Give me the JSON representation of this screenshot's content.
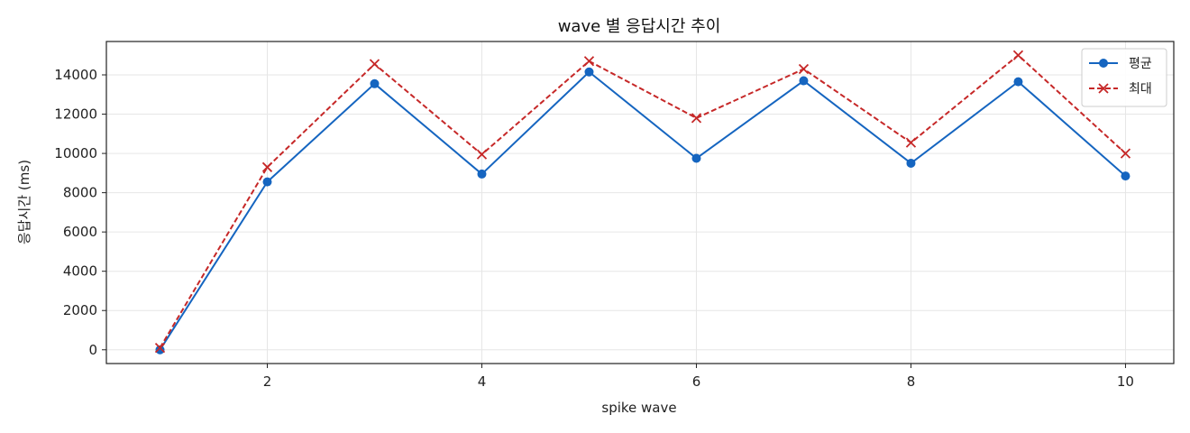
{
  "chart_data": {
    "type": "line",
    "title": "wave 별 응답시간 추이",
    "xlabel": "spike wave",
    "ylabel": "응답시간 (ms)",
    "x": [
      1,
      2,
      3,
      4,
      5,
      6,
      7,
      8,
      9,
      10
    ],
    "x_ticks": [
      2,
      4,
      6,
      8,
      10
    ],
    "y_ticks": [
      0,
      2000,
      4000,
      6000,
      8000,
      10000,
      12000,
      14000
    ],
    "xlim": [
      0.5,
      10.45
    ],
    "ylim": [
      -700,
      15700
    ],
    "grid": true,
    "legend_position": "top-right",
    "series": [
      {
        "name": "평균",
        "color": "#1565c0",
        "marker": "circle",
        "line_style": "solid",
        "values": [
          0,
          8550,
          13550,
          8950,
          14150,
          9750,
          13700,
          9500,
          13650,
          8850
        ]
      },
      {
        "name": "최대",
        "color": "#c62828",
        "marker": "x",
        "line_style": "dashed",
        "values": [
          100,
          9300,
          14550,
          9950,
          14700,
          11800,
          14300,
          10550,
          15000,
          10000
        ]
      }
    ]
  }
}
